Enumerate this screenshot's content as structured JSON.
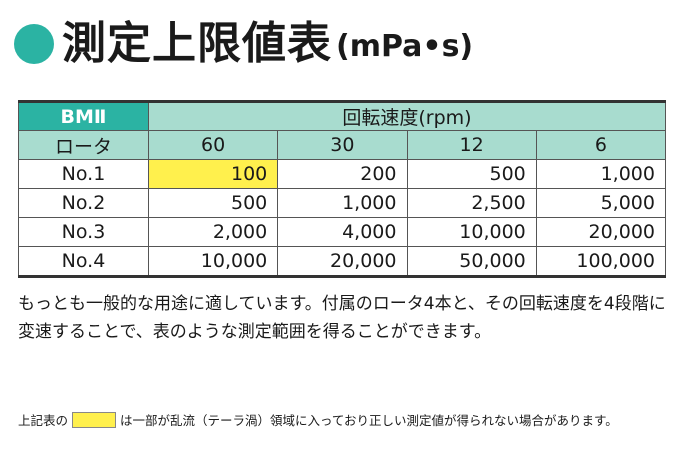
{
  "title": {
    "main": "測定上限値表",
    "unit": "(mPa•s)"
  },
  "table": {
    "model_label": "BMⅡ",
    "speed_label": "回転速度(rpm)",
    "rotor_label": "ロータ",
    "speeds": [
      "60",
      "30",
      "12",
      "6"
    ],
    "rows": [
      {
        "rotor": "No.1",
        "values": [
          "100",
          "200",
          "500",
          "1,000"
        ]
      },
      {
        "rotor": "No.2",
        "values": [
          "500",
          "1,000",
          "2,500",
          "5,000"
        ]
      },
      {
        "rotor": "No.3",
        "values": [
          "2,000",
          "4,000",
          "10,000",
          "20,000"
        ]
      },
      {
        "rotor": "No.4",
        "values": [
          "10,000",
          "20,000",
          "50,000",
          "100,000"
        ]
      }
    ],
    "highlight_color": "#fff04d",
    "header_color": "#2bb3a3",
    "subheader_color": "#a8dccf"
  },
  "note": "もっとも一般的な用途に適しています。付属のロータ4本と、その回転速度を4段階に変速することで、表のような測定範囲を得ることができます。",
  "footnote": {
    "prefix": "上記表の",
    "suffix": "は一部が乱流（テーラ渦）領域に入っており正しい測定値が得られない場合があります。"
  }
}
